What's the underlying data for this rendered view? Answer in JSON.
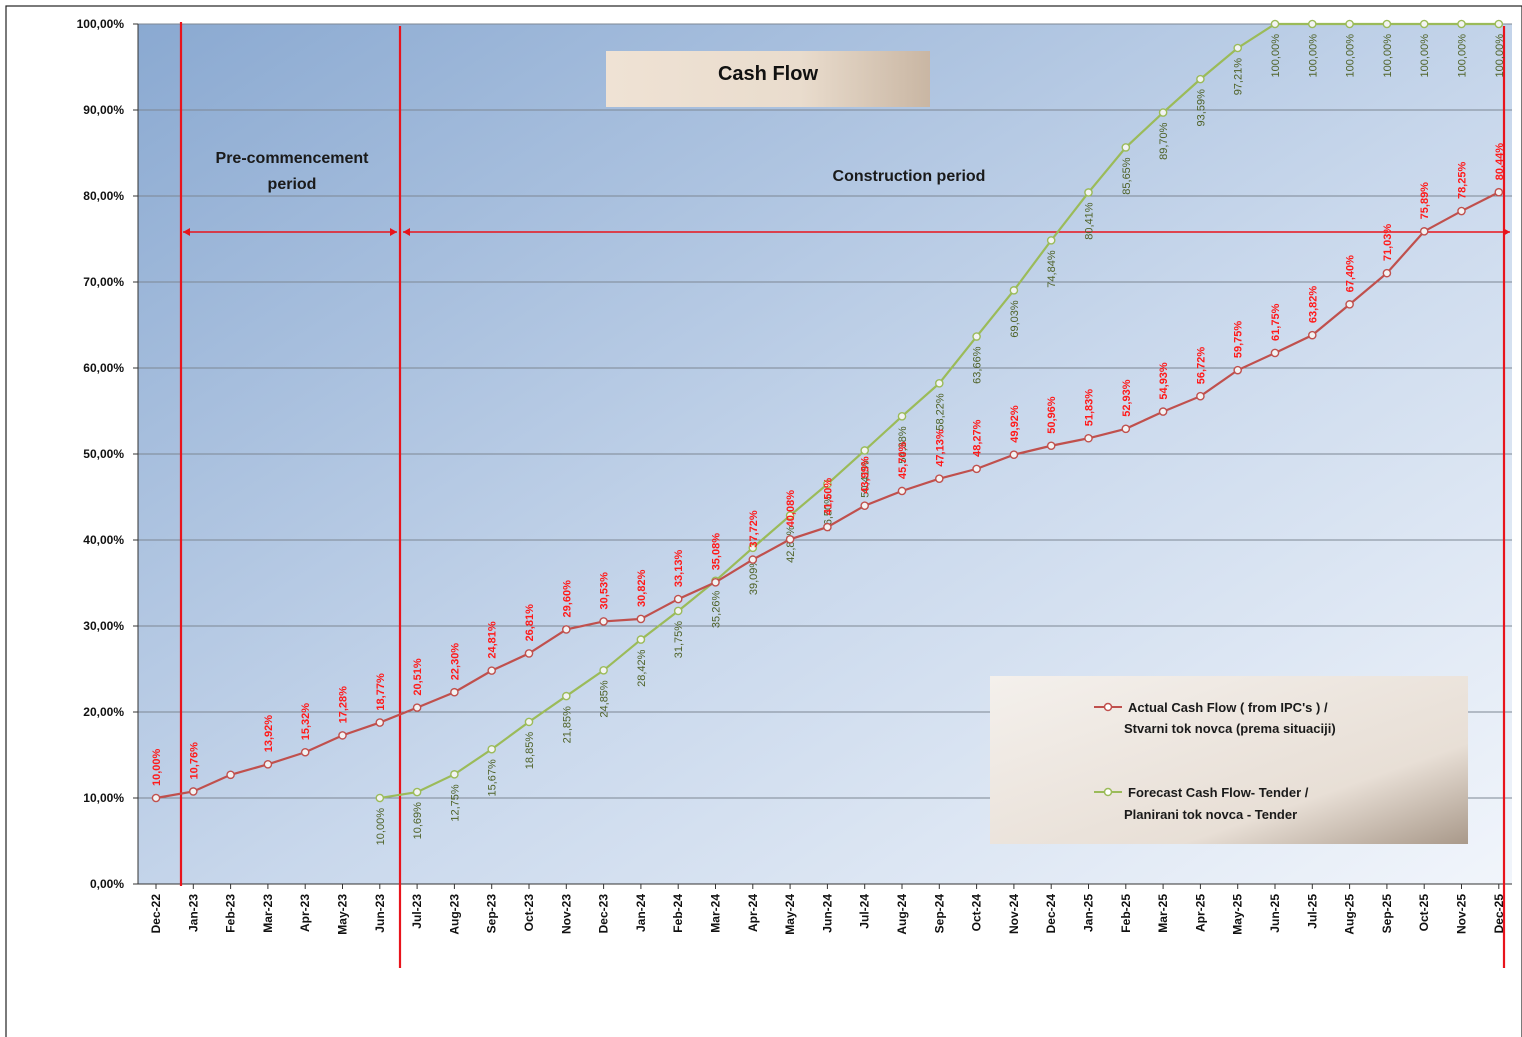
{
  "chart_data": {
    "type": "line",
    "title": "Cash Flow",
    "categories": [
      "Dec-22",
      "Jan-23",
      "Feb-23",
      "Mar-23",
      "Apr-23",
      "May-23",
      "Jun-23",
      "Jul-23",
      "Aug-23",
      "Sep-23",
      "Oct-23",
      "Nov-23",
      "Dec-23",
      "Jan-24",
      "Feb-24",
      "Mar-24",
      "Apr-24",
      "May-24",
      "Jun-24",
      "Jul-24",
      "Aug-24",
      "Sep-24",
      "Oct-24",
      "Nov-24",
      "Dec-24",
      "Jan-25",
      "Feb-25",
      "Mar-25",
      "Apr-25",
      "May-25",
      "Jun-25",
      "Jul-25",
      "Aug-25",
      "Sep-25",
      "Oct-25",
      "Nov-25",
      "Dec-25"
    ],
    "y_ticks": [
      "0,00%",
      "10,00%",
      "20,00%",
      "30,00%",
      "40,00%",
      "50,00%",
      "60,00%",
      "70,00%",
      "80,00%",
      "90,00%",
      "100,00%"
    ],
    "ylim": [
      0,
      100
    ],
    "grid": true,
    "legend_position": "bottom-right",
    "series": [
      {
        "name": "Actual Cash Flow ( from IPC's ) / Stvarni tok novca (prema situaciji)",
        "legend_lines": [
          "Actual Cash Flow ( from IPC's ) /",
          "Stvarni tok novca (prema situaciji)"
        ],
        "color": "#c0504d",
        "label_color": "#ff1a1a",
        "values": [
          10.0,
          10.76,
          12.7,
          13.92,
          15.32,
          17.28,
          18.77,
          20.51,
          22.3,
          24.81,
          26.81,
          29.6,
          30.53,
          30.82,
          33.13,
          35.08,
          37.72,
          40.08,
          41.5,
          43.99,
          45.7,
          47.13,
          48.27,
          49.92,
          50.96,
          51.83,
          52.93,
          54.93,
          56.72,
          59.75,
          61.75,
          63.82,
          67.4,
          71.03,
          75.89,
          78.25,
          80.44
        ],
        "labels": [
          "10,00%",
          "10,76%",
          "",
          "13,92%",
          "15,32%",
          "17,28%",
          "18,77%",
          "20,51%",
          "22,30%",
          "24,81%",
          "26,81%",
          "29,60%",
          "30,53%",
          "30,82%",
          "33,13%",
          "35,08%",
          "37,72%",
          "40,08%",
          "41,50%",
          "43,99%",
          "45,70%",
          "47,13%",
          "48,27%",
          "49,92%",
          "50,96%",
          "51,83%",
          "52,93%",
          "54,93%",
          "56,72%",
          "59,75%",
          "61,75%",
          "63,82%",
          "67,40%",
          "71,03%",
          "75,89%",
          "78,25%",
          "80,44%"
        ]
      },
      {
        "name": "Forecast Cash Flow- Tender / Planirani tok novca - Tender",
        "legend_lines": [
          "Forecast  Cash Flow- Tender /",
          "Planirani tok novca - Tender"
        ],
        "color": "#9bbb59",
        "label_color": "#4f6228",
        "start_index": 6,
        "values": [
          null,
          null,
          null,
          null,
          null,
          null,
          10.0,
          10.69,
          12.75,
          15.67,
          18.85,
          21.85,
          24.85,
          28.42,
          31.75,
          35.26,
          39.09,
          42.84,
          46.5,
          50.41,
          54.38,
          58.22,
          63.66,
          69.03,
          74.84,
          80.41,
          85.65,
          89.7,
          93.59,
          97.21,
          100.0,
          100.0,
          100.0,
          100.0,
          100.0,
          100.0,
          100.0
        ],
        "labels": [
          "",
          "",
          "",
          "",
          "",
          "",
          "10,00%",
          "10,69%",
          "12,75%",
          "15,67%",
          "18,85%",
          "21,85%",
          "24,85%",
          "28,42%",
          "31,75%",
          "35,26%",
          "39,09%",
          "42,84%",
          "46,50%",
          "50,41%",
          "54,38%",
          "58,22%",
          "63,66%",
          "69,03%",
          "74,84%",
          "80,41%",
          "85,65%",
          "89,70%",
          "93,59%",
          "97,21%",
          "100,00%",
          "100,00%",
          "100,00%",
          "100,00%",
          "100,00%",
          "100,00%",
          "100,00%"
        ]
      }
    ],
    "annotations": {
      "pre_commencement": [
        "Pre-commencement",
        "period"
      ],
      "construction": "Construction period"
    }
  },
  "colors": {
    "plot_bg_dark": "#8fb0d6",
    "plot_bg_light": "#eef3fa",
    "phase_lines": "#e8141c",
    "title_box": "#e6d6c6",
    "legend_box": "#ece6df"
  }
}
